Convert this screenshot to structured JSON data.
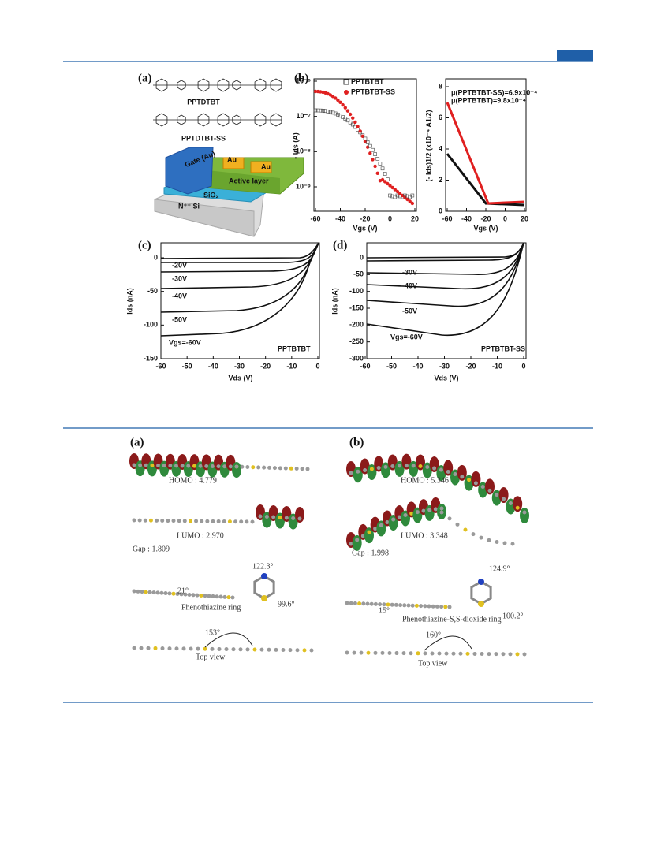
{
  "figure1": {
    "a": {
      "label": "(a)",
      "molecule_1": "PPTDTBT",
      "molecule_2": "PPTDTBT-SS",
      "gate": "Gate (Au)",
      "source": "Au",
      "drain": "Au",
      "active": "Active layer",
      "dielectric": "SiO₂",
      "substrate": "N⁺⁺ Si"
    },
    "b": {
      "label": "(b)",
      "left": {
        "ylabel": "- Ids (A)",
        "xlabel": "Vgs (V)",
        "yticks": [
          "10⁻⁶",
          "10⁻⁷",
          "10⁻⁸",
          "10⁻⁹"
        ],
        "xticks": [
          -60,
          -40,
          -20,
          0,
          20
        ],
        "legend": [
          "PPTBTBT",
          "PPTBTBT-SS"
        ]
      },
      "right": {
        "ylabel": "(- Ids)1/2 (x10⁻⁴ A1/2)",
        "xlabel": "Vgs (V)",
        "yticks": [
          0,
          2,
          4,
          6,
          8
        ],
        "xticks": [
          -60,
          -40,
          -20,
          0,
          20
        ],
        "annotations": [
          "μ(PPTBTBT-SS)=6.9x10⁻⁴",
          "μ(PPTBTBT)=9.8x10⁻⁴"
        ]
      }
    },
    "c": {
      "label": "(c)",
      "xlabel": "Vds (V)",
      "ylabel": "Ids (nA)",
      "xticks": [
        -60,
        -50,
        -40,
        -30,
        -20,
        -10,
        0
      ],
      "yticks": [
        0,
        -50,
        -100,
        -150
      ],
      "curve_labels": [
        "-20V",
        "-30V",
        "-40V",
        "-50V",
        "Vgs=-60V"
      ],
      "name": "PPTBTBT"
    },
    "d": {
      "label": "(d)",
      "xlabel": "Vds (V)",
      "ylabel": "Ids (nA)",
      "xticks": [
        -60,
        -50,
        -40,
        -30,
        -20,
        -10,
        0
      ],
      "yticks": [
        0,
        -50,
        -100,
        -150,
        -200,
        -250,
        -300
      ],
      "curve_labels": [
        "-30V",
        "-40V",
        "-50V",
        "Vgs=-60V"
      ],
      "name": "PPTBTBT-SS"
    }
  },
  "figure2": {
    "a": {
      "label": "(a)",
      "homo": "HOMO : 4.779",
      "lumo": "LUMO : 2.970",
      "gap": "Gap : 1.809",
      "angles": [
        "21°",
        "122.3°",
        "99.6°",
        "153°"
      ],
      "ring": "Phenothiazine ring",
      "view": "Top view"
    },
    "b": {
      "label": "(b)",
      "homo": "HOMO : 5.346",
      "lumo": "LUMO : 3.348",
      "gap": "Gap : 1.998",
      "angles": [
        "124.9°",
        "15°",
        "100.2°",
        "160°"
      ],
      "ring": "Phenothiazine-S,S-dioxide ring",
      "view": "Top view"
    }
  }
}
